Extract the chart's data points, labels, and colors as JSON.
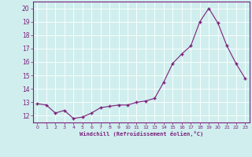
{
  "x_data": [
    0,
    1,
    2,
    3,
    4,
    5,
    6,
    7,
    8,
    9,
    10,
    11,
    12,
    13,
    14,
    15,
    16,
    17,
    18,
    19,
    20,
    21,
    22,
    23
  ],
  "y_data": [
    12.9,
    12.8,
    12.2,
    12.4,
    11.8,
    11.9,
    12.2,
    12.6,
    12.7,
    12.8,
    12.8,
    13.0,
    13.1,
    13.3,
    14.5,
    15.9,
    16.6,
    17.2,
    19.0,
    20.0,
    18.9,
    17.2,
    15.9,
    14.8
  ],
  "line_color": "#7b1f7b",
  "marker_color": "#7b1f7b",
  "bg_color": "#d0eeee",
  "grid_color": "#b8d8d8",
  "xlabel": "Windchill (Refroidissement éolien,°C)",
  "xlabel_color": "#7b1f7b",
  "tick_color": "#7b1f7b",
  "spine_color": "#7b1f7b",
  "ylim": [
    11.5,
    20.5
  ],
  "yticks": [
    12,
    13,
    14,
    15,
    16,
    17,
    18,
    19,
    20
  ],
  "xticks": [
    0,
    1,
    2,
    3,
    4,
    5,
    6,
    7,
    8,
    9,
    10,
    11,
    12,
    13,
    14,
    15,
    16,
    17,
    18,
    19,
    20,
    21,
    22,
    23
  ],
  "xlim": [
    -0.5,
    23.5
  ]
}
